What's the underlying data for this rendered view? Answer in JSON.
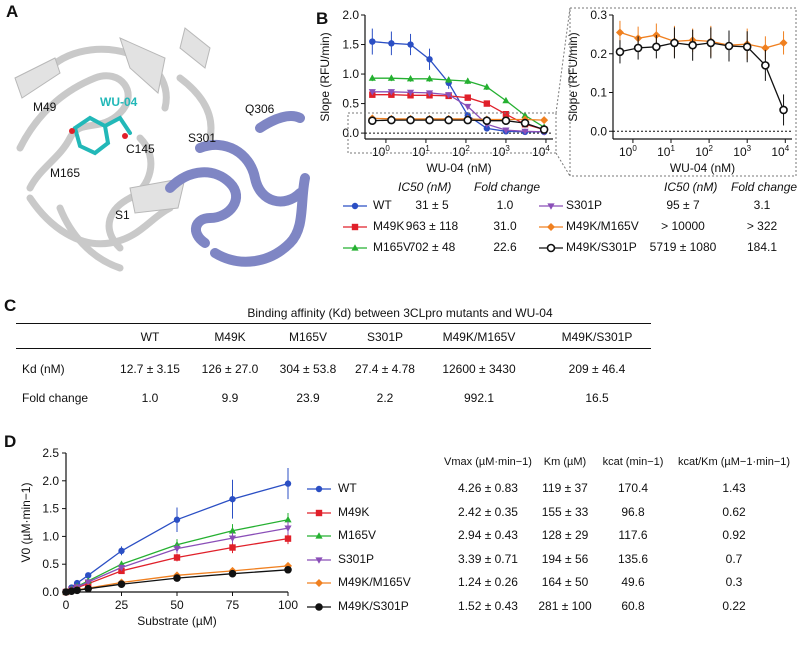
{
  "panels": {
    "A": "A",
    "B": "B",
    "C": "C",
    "D": "D"
  },
  "colors": {
    "WT": "#2b4fc4",
    "M49K": "#e0202a",
    "M165V": "#25b031",
    "S301P": "#8a4fb8",
    "M49K/M165V": "#f08020",
    "M49K/S301P": "#111111",
    "ribbon": "#7f86c4",
    "ligand": "#22b8b8"
  },
  "structure": {
    "ligand_label": "WU-04",
    "residue_labels": [
      "M49",
      "C145",
      "M165",
      "S301",
      "Q306",
      "S1"
    ]
  },
  "panel_b": {
    "legend_headers": {
      "ic50": "IC50 (nM)",
      "fold": "Fold change"
    },
    "legend_left": [
      {
        "name": "WT",
        "ic50": "31 ± 5",
        "fold": "1.0"
      },
      {
        "name": "M49K",
        "ic50": "963 ± 118",
        "fold": "31.0"
      },
      {
        "name": "M165V",
        "ic50": "702 ± 48",
        "fold": "22.6"
      }
    ],
    "legend_right": [
      {
        "name": "S301P",
        "ic50": "95 ± 7",
        "fold": "3.1"
      },
      {
        "name": "M49K/M165V",
        "ic50": "> 10000",
        "fold": "> 322"
      },
      {
        "name": "M49K/S301P",
        "ic50": "5719 ± 1080",
        "fold": "184.1"
      }
    ]
  },
  "panel_c": {
    "title": "Binding affinity (Kd) between 3CLpro mutants and WU-04",
    "columns": [
      "WT",
      "M49K",
      "M165V",
      "S301P",
      "M49K/M165V",
      "M49K/S301P"
    ],
    "rows": [
      {
        "label": "Kd (nM)",
        "values": [
          "12.7 ± 3.15",
          "126 ± 27.0",
          "304 ± 53.8",
          "27.4 ± 4.78",
          "12600 ± 3430",
          "209 ± 46.4"
        ]
      },
      {
        "label": "Fold change",
        "values": [
          "1.0",
          "9.9",
          "23.9",
          "2.2",
          "992.1",
          "16.5"
        ]
      }
    ]
  },
  "panel_d": {
    "headers": [
      "Vmax (µM·min−1)",
      "Km (µM)",
      "kcat (min−1)",
      "kcat/Km (µM−1·min−1)"
    ],
    "rows": [
      {
        "name": "WT",
        "vmax": "4.26 ± 0.83",
        "km": "119 ± 37",
        "kcat": "170.4",
        "ratio": "1.43"
      },
      {
        "name": "M49K",
        "vmax": "2.42 ± 0.35",
        "km": "155 ± 33",
        "kcat": "96.8",
        "ratio": "0.62"
      },
      {
        "name": "M165V",
        "vmax": "2.94 ± 0.43",
        "km": "128 ± 29",
        "kcat": "117.6",
        "ratio": "0.92"
      },
      {
        "name": "S301P",
        "vmax": "3.39 ± 0.71",
        "km": "194 ± 56",
        "kcat": "135.6",
        "ratio": "0.7"
      },
      {
        "name": "M49K/M165V",
        "vmax": "1.24 ± 0.26",
        "km": "164 ± 50",
        "kcat": "49.6",
        "ratio": "0.3"
      },
      {
        "name": "M49K/S301P",
        "vmax": "1.52 ± 0.43",
        "km": "281 ± 100",
        "kcat": "60.8",
        "ratio": "0.22"
      }
    ]
  },
  "chart_data": [
    {
      "type": "line",
      "id": "b-left",
      "title": "",
      "xlabel": "WU-04 (nM)",
      "ylabel": "Slope (RFU/min)",
      "xscale": "log",
      "xlim": [
        0.3,
        15000
      ],
      "ylim": [
        -0.1,
        2.0
      ],
      "xticks": [
        "10^0",
        "10^1",
        "10^2",
        "10^3",
        "10^4"
      ],
      "yticks": [
        "0.0",
        "0.5",
        "1.0",
        "1.5",
        "2.0"
      ],
      "x": [
        0.457,
        1.37,
        4.12,
        12.3,
        37,
        111,
        333,
        1000,
        3000,
        9000
      ],
      "series": [
        {
          "name": "WT",
          "values": [
            1.55,
            1.52,
            1.5,
            1.25,
            0.85,
            0.3,
            0.08,
            0.03,
            0.02,
            0.02
          ],
          "err": [
            0.22,
            0.2,
            0.18,
            0.18,
            0.1,
            0.05,
            0.03,
            0.02,
            0.02,
            0.02
          ]
        },
        {
          "name": "M49K",
          "values": [
            0.65,
            0.65,
            0.64,
            0.64,
            0.63,
            0.6,
            0.5,
            0.32,
            0.15,
            0.06
          ],
          "err": [
            0.04,
            0.04,
            0.04,
            0.04,
            0.04,
            0.04,
            0.04,
            0.03,
            0.03,
            0.02
          ]
        },
        {
          "name": "M165V",
          "values": [
            0.93,
            0.93,
            0.92,
            0.92,
            0.9,
            0.88,
            0.78,
            0.55,
            0.3,
            0.1
          ],
          "err": [
            0.05,
            0.05,
            0.05,
            0.05,
            0.05,
            0.05,
            0.05,
            0.04,
            0.04,
            0.03
          ]
        },
        {
          "name": "S301P",
          "values": [
            0.7,
            0.7,
            0.69,
            0.68,
            0.65,
            0.45,
            0.15,
            0.05,
            0.03,
            0.02
          ],
          "err": [
            0.04,
            0.04,
            0.04,
            0.04,
            0.04,
            0.04,
            0.04,
            0.03,
            0.02,
            0.02
          ]
        },
        {
          "name": "M49K/M165V",
          "values": [
            0.25,
            0.24,
            0.24,
            0.24,
            0.24,
            0.24,
            0.23,
            0.23,
            0.23,
            0.22
          ],
          "err": [
            0.02,
            0.02,
            0.02,
            0.02,
            0.02,
            0.02,
            0.02,
            0.02,
            0.02,
            0.02
          ]
        },
        {
          "name": "M49K/S301P",
          "values": [
            0.21,
            0.22,
            0.22,
            0.22,
            0.22,
            0.22,
            0.21,
            0.21,
            0.17,
            0.06
          ],
          "err": [
            0.02,
            0.02,
            0.02,
            0.02,
            0.02,
            0.02,
            0.02,
            0.02,
            0.02,
            0.02
          ]
        }
      ]
    },
    {
      "type": "line",
      "id": "b-right",
      "title": "",
      "xlabel": "WU-04 (nM)",
      "ylabel": "Slope (RFU/min)",
      "xscale": "log",
      "xlim": [
        0.3,
        15000
      ],
      "ylim": [
        -0.02,
        0.3
      ],
      "xticks": [
        "10^0",
        "10^1",
        "10^2",
        "10^3",
        "10^4"
      ],
      "yticks": [
        "0.0",
        "0.1",
        "0.2",
        "0.3"
      ],
      "x": [
        0.457,
        1.37,
        4.12,
        12.3,
        37,
        111,
        333,
        1000,
        3000,
        9000
      ],
      "series": [
        {
          "name": "M49K/M165V",
          "values": [
            0.255,
            0.24,
            0.248,
            0.232,
            0.235,
            0.232,
            0.222,
            0.225,
            0.215,
            0.228
          ],
          "err": [
            0.03,
            0.03,
            0.03,
            0.04,
            0.03,
            0.04,
            0.03,
            0.04,
            0.03,
            0.03
          ]
        },
        {
          "name": "M49K/S301P",
          "values": [
            0.205,
            0.215,
            0.218,
            0.228,
            0.222,
            0.228,
            0.22,
            0.218,
            0.17,
            0.055
          ],
          "err": [
            0.03,
            0.03,
            0.03,
            0.04,
            0.04,
            0.04,
            0.04,
            0.04,
            0.04,
            0.04
          ]
        }
      ]
    },
    {
      "type": "line",
      "id": "d",
      "title": "",
      "xlabel": "Substrate (µM)",
      "ylabel": "V0 (µM·min−1)",
      "xlim": [
        0,
        100
      ],
      "ylim": [
        0,
        2.5
      ],
      "xticks": [
        "0",
        "25",
        "50",
        "75",
        "100"
      ],
      "yticks": [
        "0.0",
        "0.5",
        "1.0",
        "1.5",
        "2.0",
        "2.5"
      ],
      "x": [
        0,
        2.5,
        5,
        10,
        25,
        50,
        75,
        100
      ],
      "series": [
        {
          "name": "WT",
          "values": [
            0,
            0.08,
            0.16,
            0.3,
            0.74,
            1.3,
            1.67,
            1.95
          ],
          "err": [
            0,
            0.02,
            0.03,
            0.04,
            0.08,
            0.22,
            0.35,
            0.28
          ]
        },
        {
          "name": "M49K",
          "values": [
            0,
            0.04,
            0.08,
            0.15,
            0.38,
            0.62,
            0.8,
            0.96
          ],
          "err": [
            0,
            0.01,
            0.02,
            0.03,
            0.05,
            0.07,
            0.1,
            0.1
          ]
        },
        {
          "name": "M165V",
          "values": [
            0,
            0.05,
            0.1,
            0.2,
            0.5,
            0.85,
            1.1,
            1.3
          ],
          "err": [
            0,
            0.01,
            0.02,
            0.03,
            0.05,
            0.1,
            0.12,
            0.12
          ]
        },
        {
          "name": "S301P",
          "values": [
            0,
            0.05,
            0.09,
            0.18,
            0.44,
            0.78,
            0.97,
            1.15
          ],
          "err": [
            0,
            0.01,
            0.02,
            0.03,
            0.05,
            0.08,
            0.1,
            0.12
          ]
        },
        {
          "name": "M49K/M165V",
          "values": [
            0,
            0.02,
            0.04,
            0.07,
            0.17,
            0.3,
            0.38,
            0.47
          ],
          "err": [
            0,
            0.01,
            0.01,
            0.01,
            0.02,
            0.03,
            0.04,
            0.05
          ]
        },
        {
          "name": "M49K/S301P",
          "values": [
            0,
            0.015,
            0.03,
            0.06,
            0.14,
            0.25,
            0.33,
            0.4
          ],
          "err": [
            0,
            0.01,
            0.01,
            0.01,
            0.02,
            0.03,
            0.03,
            0.04
          ]
        }
      ]
    }
  ]
}
